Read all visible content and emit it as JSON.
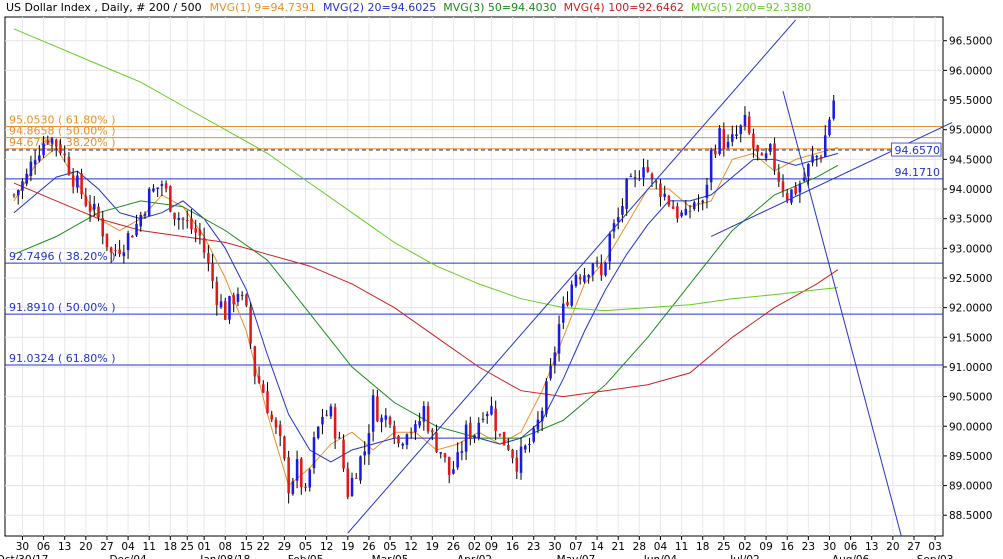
{
  "header": {
    "title": "US Dollar Index , Daily, # 200 / 500",
    "mvg": [
      {
        "label": "MVG(1) 9=94.7391",
        "color": "#e8902a"
      },
      {
        "label": "MVG(2) 20=94.6025",
        "color": "#2233cc"
      },
      {
        "label": "MVG(3) 50=94.4030",
        "color": "#1a8a1a"
      },
      {
        "label": "MVG(4) 100=92.6462",
        "color": "#cc2020"
      },
      {
        "label": "MVG(5) 200=92.3380",
        "color": "#66cc22"
      }
    ]
  },
  "chart_data": {
    "type": "candlestick",
    "ylim": [
      88.15,
      96.9
    ],
    "y_ticks": [
      88.5,
      89.0,
      89.5,
      90.0,
      90.5,
      91.0,
      91.5,
      92.0,
      92.5,
      93.0,
      93.5,
      94.0,
      94.5,
      95.0,
      95.5,
      96.0,
      96.5
    ],
    "y_tick_labels": [
      "88.5000",
      "89.0000",
      "89.5000",
      "90.0000",
      "90.5000",
      "91.0000",
      "91.5000",
      "92.0000",
      "92.5000",
      "93.0000",
      "93.5000",
      "94.0000",
      "94.5000",
      "95.0000",
      "95.5000",
      "96.0000",
      "96.5000"
    ],
    "x_day_ticks": [
      {
        "d": "30",
        "i": 2
      },
      {
        "d": "06",
        "i": 7
      },
      {
        "d": "13",
        "i": 12
      },
      {
        "d": "20",
        "i": 17
      },
      {
        "d": "27",
        "i": 22
      },
      {
        "d": "04",
        "i": 27
      },
      {
        "d": "11",
        "i": 32
      },
      {
        "d": "18",
        "i": 37
      },
      {
        "d": "25",
        "i": 41
      },
      {
        "d": "01",
        "i": 45
      },
      {
        "d": "08",
        "i": 50
      },
      {
        "d": "15",
        "i": 55
      },
      {
        "d": "22",
        "i": 59
      },
      {
        "d": "29",
        "i": 64
      },
      {
        "d": "05",
        "i": 69
      },
      {
        "d": "12",
        "i": 74
      },
      {
        "d": "19",
        "i": 79
      },
      {
        "d": "26",
        "i": 84
      },
      {
        "d": "05",
        "i": 89
      },
      {
        "d": "12",
        "i": 94
      },
      {
        "d": "19",
        "i": 99
      },
      {
        "d": "26",
        "i": 104
      },
      {
        "d": "02",
        "i": 109
      },
      {
        "d": "09",
        "i": 113
      },
      {
        "d": "16",
        "i": 118
      },
      {
        "d": "23",
        "i": 123
      },
      {
        "d": "30",
        "i": 128
      },
      {
        "d": "07",
        "i": 133
      },
      {
        "d": "14",
        "i": 138
      },
      {
        "d": "21",
        "i": 143
      },
      {
        "d": "28",
        "i": 148
      },
      {
        "d": "04",
        "i": 153
      },
      {
        "d": "11",
        "i": 158
      },
      {
        "d": "18",
        "i": 163
      },
      {
        "d": "25",
        "i": 168
      },
      {
        "d": "02",
        "i": 173
      },
      {
        "d": "09",
        "i": 178
      },
      {
        "d": "16",
        "i": 183
      },
      {
        "d": "23",
        "i": 188
      },
      {
        "d": "30",
        "i": 193
      },
      {
        "d": "06",
        "i": 198
      },
      {
        "d": "13",
        "i": 203
      },
      {
        "d": "20",
        "i": 208
      },
      {
        "d": "27",
        "i": 213
      },
      {
        "d": "03",
        "i": 218
      }
    ],
    "x_month_ticks": [
      {
        "label": "Oct/30/17",
        "i": 2
      },
      {
        "label": "Dec/04",
        "i": 27
      },
      {
        "label": "Jan/08/18",
        "i": 50
      },
      {
        "label": "Feb/05",
        "i": 69
      },
      {
        "label": "Mar/05",
        "i": 89
      },
      {
        "label": "Apr/02",
        "i": 109
      },
      {
        "label": "May/07",
        "i": 133
      },
      {
        "label": "Jun/04",
        "i": 153
      },
      {
        "label": "Jul/02",
        "i": 173
      },
      {
        "label": "Aug/06",
        "i": 198
      },
      {
        "label": "Sep/03",
        "i": 218
      }
    ],
    "x_slots": 222,
    "candle_count": 195,
    "current_price": {
      "value": 94.657,
      "label": "94.6570"
    },
    "horizontal_levels": [
      {
        "value": 95.053,
        "label": "95.0530 ( 61.80% )",
        "color": "#e8902a",
        "label_pos": "left-top"
      },
      {
        "value": 94.8658,
        "label": "94.8658 ( 50.00% )",
        "color": "#e8902a",
        "label_pos": "left-top"
      },
      {
        "value": 94.6786,
        "label": "94.6786 ( 38.20% )",
        "color": "#e8902a",
        "label_pos": "left-top"
      },
      {
        "value": 94.171,
        "label": "94.1710",
        "color": "#2233cc",
        "label_pos": "right-top"
      },
      {
        "value": 92.7496,
        "label": "92.7496 ( 38.20% )",
        "color": "#2233cc",
        "label_pos": "left-top"
      },
      {
        "value": 91.891,
        "label": "91.8910 ( 50.00% )",
        "color": "#2233cc",
        "label_pos": "left-top"
      },
      {
        "value": 91.0324,
        "label": "91.0324 ( 61.80% )",
        "color": "#2233cc",
        "label_pos": "left-top"
      }
    ],
    "trendlines": [
      {
        "p1": [
          79,
          88.2
        ],
        "p2": [
          185,
          96.85
        ],
        "color": "#2233cc"
      },
      {
        "p1": [
          165,
          93.2
        ],
        "p2": [
          222,
          95.12
        ],
        "color": "#2233cc"
      },
      {
        "p1": [
          182,
          95.65
        ],
        "p2": [
          210,
          88.15
        ],
        "color": "#2233cc"
      }
    ],
    "moving_averages": [
      {
        "name": "MVG(1) 9",
        "color": "#e8902a",
        "width": 1,
        "points": [
          [
            0,
            93.8
          ],
          [
            5,
            94.4
          ],
          [
            10,
            94.7
          ],
          [
            15,
            94.1
          ],
          [
            20,
            93.5
          ],
          [
            25,
            93.3
          ],
          [
            30,
            93.5
          ],
          [
            35,
            93.9
          ],
          [
            40,
            93.7
          ],
          [
            45,
            93.2
          ],
          [
            50,
            92.5
          ],
          [
            55,
            91.6
          ],
          [
            60,
            90.2
          ],
          [
            65,
            89.0
          ],
          [
            70,
            89.3
          ],
          [
            75,
            89.7
          ],
          [
            80,
            89.9
          ],
          [
            85,
            89.6
          ],
          [
            90,
            89.9
          ],
          [
            95,
            89.9
          ],
          [
            100,
            89.6
          ],
          [
            105,
            89.7
          ],
          [
            110,
            89.9
          ],
          [
            115,
            89.7
          ],
          [
            120,
            89.9
          ],
          [
            125,
            90.6
          ],
          [
            130,
            91.5
          ],
          [
            135,
            92.4
          ],
          [
            140,
            92.8
          ],
          [
            145,
            93.4
          ],
          [
            150,
            94.0
          ],
          [
            155,
            94.0
          ],
          [
            160,
            93.7
          ],
          [
            165,
            93.8
          ],
          [
            170,
            94.5
          ],
          [
            175,
            94.6
          ],
          [
            180,
            94.3
          ],
          [
            185,
            94.5
          ],
          [
            190,
            94.6
          ],
          [
            195,
            94.7
          ]
        ]
      },
      {
        "name": "MVG(2) 20",
        "color": "#2233cc",
        "width": 1,
        "points": [
          [
            0,
            93.6
          ],
          [
            5,
            93.9
          ],
          [
            10,
            94.2
          ],
          [
            15,
            94.3
          ],
          [
            20,
            94.0
          ],
          [
            25,
            93.6
          ],
          [
            30,
            93.5
          ],
          [
            35,
            93.6
          ],
          [
            40,
            93.8
          ],
          [
            45,
            93.5
          ],
          [
            50,
            93.0
          ],
          [
            55,
            92.3
          ],
          [
            60,
            91.2
          ],
          [
            65,
            90.2
          ],
          [
            70,
            89.6
          ],
          [
            75,
            89.4
          ],
          [
            80,
            89.6
          ],
          [
            85,
            89.7
          ],
          [
            90,
            89.8
          ],
          [
            95,
            89.8
          ],
          [
            100,
            89.8
          ],
          [
            105,
            89.8
          ],
          [
            110,
            89.8
          ],
          [
            115,
            89.7
          ],
          [
            120,
            89.8
          ],
          [
            125,
            90.1
          ],
          [
            130,
            90.8
          ],
          [
            135,
            91.6
          ],
          [
            140,
            92.3
          ],
          [
            145,
            92.9
          ],
          [
            150,
            93.4
          ],
          [
            155,
            93.8
          ],
          [
            160,
            93.8
          ],
          [
            165,
            93.9
          ],
          [
            170,
            94.2
          ],
          [
            175,
            94.5
          ],
          [
            180,
            94.5
          ],
          [
            185,
            94.4
          ],
          [
            190,
            94.5
          ],
          [
            195,
            94.6
          ]
        ]
      },
      {
        "name": "MVG(3) 50",
        "color": "#1a8a1a",
        "width": 1,
        "points": [
          [
            0,
            92.9
          ],
          [
            10,
            93.2
          ],
          [
            20,
            93.6
          ],
          [
            30,
            93.8
          ],
          [
            40,
            93.7
          ],
          [
            50,
            93.3
          ],
          [
            60,
            92.8
          ],
          [
            70,
            91.9
          ],
          [
            80,
            91.0
          ],
          [
            90,
            90.4
          ],
          [
            100,
            90.0
          ],
          [
            110,
            89.8
          ],
          [
            120,
            89.8
          ],
          [
            130,
            90.1
          ],
          [
            140,
            90.7
          ],
          [
            150,
            91.5
          ],
          [
            160,
            92.4
          ],
          [
            170,
            93.3
          ],
          [
            180,
            93.9
          ],
          [
            190,
            94.2
          ],
          [
            195,
            94.4
          ]
        ]
      },
      {
        "name": "MVG(4) 100",
        "color": "#cc2020",
        "width": 1,
        "points": [
          [
            0,
            94.1
          ],
          [
            10,
            93.8
          ],
          [
            20,
            93.5
          ],
          [
            30,
            93.3
          ],
          [
            40,
            93.2
          ],
          [
            50,
            93.1
          ],
          [
            60,
            92.9
          ],
          [
            70,
            92.7
          ],
          [
            80,
            92.4
          ],
          [
            90,
            92.0
          ],
          [
            100,
            91.5
          ],
          [
            110,
            91.0
          ],
          [
            120,
            90.6
          ],
          [
            130,
            90.5
          ],
          [
            140,
            90.6
          ],
          [
            150,
            90.7
          ],
          [
            160,
            90.9
          ],
          [
            170,
            91.5
          ],
          [
            180,
            92.0
          ],
          [
            190,
            92.4
          ],
          [
            195,
            92.64
          ]
        ]
      },
      {
        "name": "MVG(5) 200",
        "color": "#66cc22",
        "width": 1,
        "points": [
          [
            0,
            96.7
          ],
          [
            10,
            96.4
          ],
          [
            20,
            96.1
          ],
          [
            30,
            95.8
          ],
          [
            40,
            95.4
          ],
          [
            50,
            95.0
          ],
          [
            60,
            94.6
          ],
          [
            70,
            94.1
          ],
          [
            80,
            93.6
          ],
          [
            90,
            93.1
          ],
          [
            100,
            92.7
          ],
          [
            110,
            92.4
          ],
          [
            120,
            92.15
          ],
          [
            130,
            92.0
          ],
          [
            140,
            91.95
          ],
          [
            150,
            92.0
          ],
          [
            160,
            92.05
          ],
          [
            170,
            92.15
          ],
          [
            180,
            92.22
          ],
          [
            190,
            92.3
          ],
          [
            195,
            92.338
          ]
        ]
      }
    ],
    "close_path": [
      [
        0,
        93.9
      ],
      [
        3,
        94.2
      ],
      [
        5,
        94.6
      ],
      [
        8,
        94.9
      ],
      [
        11,
        94.7
      ],
      [
        14,
        94.2
      ],
      [
        17,
        93.8
      ],
      [
        20,
        93.5
      ],
      [
        23,
        92.9
      ],
      [
        26,
        93.1
      ],
      [
        29,
        93.4
      ],
      [
        32,
        93.9
      ],
      [
        35,
        94.1
      ],
      [
        38,
        93.6
      ],
      [
        41,
        93.4
      ],
      [
        44,
        93.2
      ],
      [
        46,
        92.7
      ],
      [
        48,
        92.2
      ],
      [
        50,
        91.9
      ],
      [
        53,
        92.3
      ],
      [
        55,
        91.9
      ],
      [
        57,
        90.9
      ],
      [
        59,
        90.6
      ],
      [
        61,
        90.1
      ],
      [
        63,
        89.7
      ],
      [
        65,
        89.0
      ],
      [
        67,
        89.3
      ],
      [
        69,
        88.8
      ],
      [
        71,
        89.7
      ],
      [
        73,
        90.2
      ],
      [
        75,
        90.2
      ],
      [
        77,
        89.7
      ],
      [
        79,
        88.9
      ],
      [
        81,
        89.3
      ],
      [
        83,
        89.6
      ],
      [
        85,
        90.4
      ],
      [
        87,
        90.1
      ],
      [
        89,
        90.2
      ],
      [
        91,
        89.7
      ],
      [
        93,
        90.0
      ],
      [
        95,
        89.9
      ],
      [
        97,
        90.3
      ],
      [
        99,
        89.8
      ],
      [
        101,
        89.6
      ],
      [
        103,
        89.2
      ],
      [
        105,
        89.4
      ],
      [
        107,
        89.9
      ],
      [
        109,
        89.9
      ],
      [
        111,
        90.3
      ],
      [
        113,
        90.3
      ],
      [
        115,
        89.8
      ],
      [
        117,
        89.7
      ],
      [
        119,
        89.4
      ],
      [
        121,
        89.6
      ],
      [
        123,
        89.8
      ],
      [
        125,
        90.3
      ],
      [
        127,
        90.9
      ],
      [
        129,
        91.7
      ],
      [
        131,
        92.2
      ],
      [
        133,
        92.6
      ],
      [
        135,
        92.6
      ],
      [
        137,
        92.8
      ],
      [
        139,
        92.5
      ],
      [
        141,
        93.2
      ],
      [
        143,
        93.5
      ],
      [
        145,
        94.0
      ],
      [
        147,
        94.1
      ],
      [
        149,
        94.5
      ],
      [
        151,
        94.1
      ],
      [
        153,
        94.0
      ],
      [
        155,
        93.8
      ],
      [
        157,
        93.6
      ],
      [
        159,
        93.5
      ],
      [
        161,
        93.8
      ],
      [
        163,
        93.7
      ],
      [
        165,
        94.6
      ],
      [
        167,
        94.9
      ],
      [
        169,
        94.7
      ],
      [
        171,
        94.9
      ],
      [
        173,
        95.1
      ],
      [
        175,
        94.7
      ],
      [
        177,
        94.4
      ],
      [
        179,
        94.6
      ],
      [
        181,
        94.2
      ],
      [
        183,
        93.9
      ],
      [
        185,
        94.0
      ],
      [
        187,
        94.2
      ],
      [
        189,
        94.5
      ],
      [
        191,
        94.6
      ],
      [
        193,
        95.2
      ],
      [
        194,
        95.5
      ],
      [
        196,
        94.6
      ],
      [
        198,
        94.3
      ],
      [
        200,
        94.2
      ],
      [
        202,
        94.5
      ],
      [
        204,
        94.66
      ]
    ]
  }
}
